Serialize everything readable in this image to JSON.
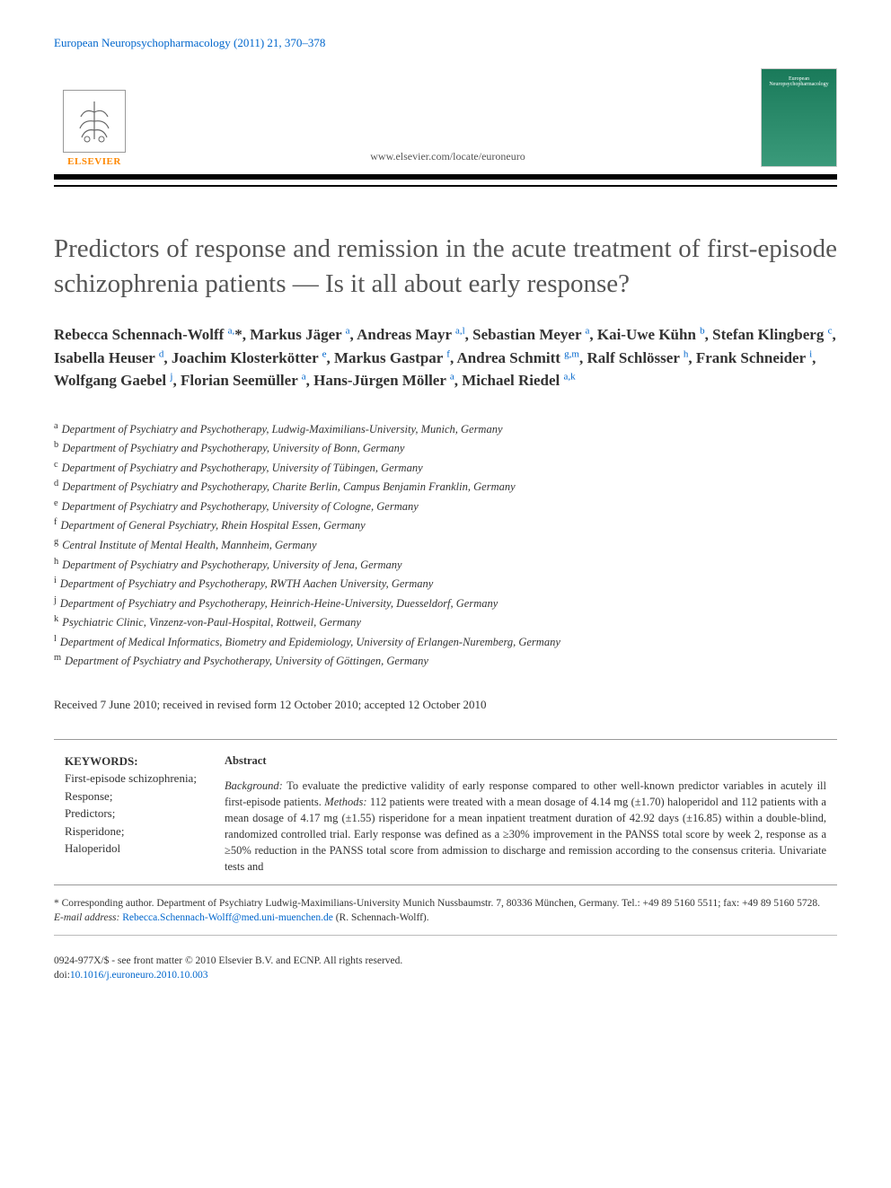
{
  "journal_citation": "European Neuropsychopharmacology (2011) 21, 370–378",
  "publisher": {
    "name": "ELSEVIER",
    "logo_alt": "Elsevier tree"
  },
  "journal_link": "www.elsevier.com/locate/euroneuro",
  "cover_text": "European Neuropsychopharmacology",
  "title": "Predictors of response and remission in the acute treatment of first-episode schizophrenia patients — Is it all about early response?",
  "authors_html": "Rebecca Schennach-Wolff <sup>a,</sup>*, Markus Jäger <sup>a</sup>, Andreas Mayr <sup>a,l</sup>, Sebastian Meyer <sup>a</sup>, Kai-Uwe Kühn <sup>b</sup>, Stefan Klingberg <sup>c</sup>, Isabella Heuser <sup>d</sup>, Joachim Klosterkötter <sup>e</sup>, Markus Gastpar <sup>f</sup>, Andrea Schmitt <sup>g,m</sup>, Ralf Schlösser <sup>h</sup>, Frank Schneider <sup>i</sup>, Wolfgang Gaebel <sup>j</sup>, Florian Seemüller <sup>a</sup>, Hans-Jürgen Möller <sup>a</sup>, Michael Riedel <sup>a,k</sup>",
  "affiliations": [
    {
      "key": "a",
      "text": "Department of Psychiatry and Psychotherapy, Ludwig-Maximilians-University, Munich, Germany"
    },
    {
      "key": "b",
      "text": "Department of Psychiatry and Psychotherapy, University of Bonn, Germany"
    },
    {
      "key": "c",
      "text": "Department of Psychiatry and Psychotherapy, University of Tübingen, Germany"
    },
    {
      "key": "d",
      "text": "Department of Psychiatry and Psychotherapy, Charite Berlin, Campus Benjamin Franklin, Germany"
    },
    {
      "key": "e",
      "text": "Department of Psychiatry and Psychotherapy, University of Cologne, Germany"
    },
    {
      "key": "f",
      "text": "Department of General Psychiatry, Rhein Hospital Essen, Germany"
    },
    {
      "key": "g",
      "text": "Central Institute of Mental Health, Mannheim, Germany"
    },
    {
      "key": "h",
      "text": "Department of Psychiatry and Psychotherapy, University of Jena, Germany"
    },
    {
      "key": "i",
      "text": "Department of Psychiatry and Psychotherapy, RWTH Aachen University, Germany"
    },
    {
      "key": "j",
      "text": "Department of Psychiatry and Psychotherapy, Heinrich-Heine-University, Duesseldorf, Germany"
    },
    {
      "key": "k",
      "text": "Psychiatric Clinic, Vinzenz-von-Paul-Hospital, Rottweil, Germany"
    },
    {
      "key": "l",
      "text": "Department of Medical Informatics, Biometry and Epidemiology, University of Erlangen-Nuremberg, Germany"
    },
    {
      "key": "m",
      "text": "Department of Psychiatry and Psychotherapy, University of Göttingen, Germany"
    }
  ],
  "received": "Received 7 June 2010; received in revised form 12 October 2010; accepted 12 October 2010",
  "keywords": {
    "title": "KEYWORDS:",
    "items": [
      "First-episode schizophrenia;",
      "Response;",
      "Predictors;",
      "Risperidone;",
      "Haloperidol"
    ]
  },
  "abstract": {
    "title": "Abstract",
    "body": "Background:  To evaluate the predictive validity of early response compared to other well-known predictor variables in acutely ill first-episode patients. Methods:  112 patients were treated with a mean dosage of 4.14 mg (±1.70) haloperidol and 112 patients with a mean dosage of 4.17 mg (±1.55) risperidone for a mean inpatient treatment duration of 42.92 days (±16.85) within a double-blind, randomized controlled trial. Early response was defined as a ≥30% improvement in the PANSS total score by week 2, response as a ≥50% reduction in the PANSS total score from admission to discharge and remission according to the consensus criteria. Univariate tests and"
  },
  "footnotes": {
    "corresponding": "* Corresponding author. Department of Psychiatry Ludwig-Maximilians-University Munich Nussbaumstr. 7, 80336 München, Germany. Tel.: +49 89 5160 5511; fax: +49 89 5160 5728.",
    "email_label": "E-mail address: ",
    "email": "Rebecca.Schennach-Wolff@med.uni-muenchen.de",
    "email_suffix": " (R. Schennach-Wolff)."
  },
  "footer": {
    "line1": "0924-977X/$ - see front matter © 2010 Elsevier B.V. and ECNP. All rights reserved.",
    "doi_label": "doi:",
    "doi": "10.1016/j.euroneuro.2010.10.003"
  },
  "colors": {
    "link": "#0066cc",
    "elsevier_orange": "#ff8800",
    "title_gray": "#555555",
    "text": "#333333",
    "rule_black": "#000000"
  },
  "typography": {
    "title_fontsize": 29,
    "authors_fontsize": 17,
    "affil_fontsize": 12.5,
    "body_fontsize": 12.5,
    "footnote_fontsize": 11.5
  }
}
